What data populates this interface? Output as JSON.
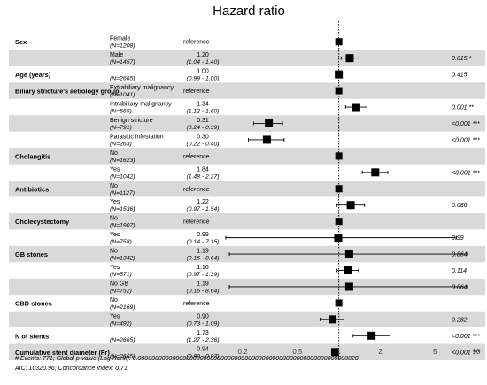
{
  "chart_data": {
    "type": "forest",
    "title": "Hazard ratio",
    "x_scale": "log",
    "xlim": [
      0.14,
      10
    ],
    "reference_line": 1,
    "x_ticks": [
      0.2,
      0.5,
      1,
      2,
      5,
      10
    ],
    "rows": [
      {
        "variable": "Sex",
        "level": "Female",
        "n": "(N=1208)",
        "reference": "reference",
        "hr": 1,
        "shaded": false
      },
      {
        "variable": "",
        "level": "Male",
        "n": "(N=1457)",
        "hr_text": "1.20",
        "ci_text": "(1.04 - 1.40)",
        "hr": 1.2,
        "lo": 1.04,
        "hi": 1.4,
        "p": "0.015 *",
        "shaded": true
      },
      {
        "variable": "Age (years)",
        "level": "",
        "n": "(N=2665)",
        "hr_text": "1.00",
        "ci_text": "(0.99 - 1.00)",
        "hr": 1.0,
        "lo": 0.99,
        "hi": 1.0,
        "p": "0.415",
        "shaded": false
      },
      {
        "variable": "Biliary stricture's aetiology group",
        "level": "Extrabiliary malignancy",
        "n": "(N=1041)",
        "reference": "reference",
        "hr": 1,
        "shaded": true
      },
      {
        "variable": "",
        "level": "Intrabiliary malignancy",
        "n": "(N=565)",
        "hr_text": "1.34",
        "ci_text": "(1.12 - 1.60)",
        "hr": 1.34,
        "lo": 1.12,
        "hi": 1.6,
        "p": "0.001 **",
        "shaded": false
      },
      {
        "variable": "",
        "level": "Benign stricture",
        "n": "(N=791)",
        "hr_text": "0.31",
        "ci_text": "(0.24 - 0.39)",
        "hr": 0.31,
        "lo": 0.24,
        "hi": 0.39,
        "p": "<0.001 ***",
        "shaded": true
      },
      {
        "variable": "",
        "level": "Parasitic infestation",
        "n": "(N=263)",
        "hr_text": "0.30",
        "ci_text": "(0.22 - 0.40)",
        "hr": 0.3,
        "lo": 0.22,
        "hi": 0.4,
        "p": "<0.001 ***",
        "shaded": false
      },
      {
        "variable": "Cholangitis",
        "level": "No",
        "n": "(N=1623)",
        "reference": "reference",
        "hr": 1,
        "shaded": true
      },
      {
        "variable": "",
        "level": "Yes",
        "n": "(N=1042)",
        "hr_text": "1.84",
        "ci_text": "(1.48 - 2.27)",
        "hr": 1.84,
        "lo": 1.48,
        "hi": 2.27,
        "p": "<0.001 ***",
        "shaded": false
      },
      {
        "variable": "Antibiotics",
        "level": "No",
        "n": "(N=1127)",
        "reference": "reference",
        "hr": 1,
        "shaded": true
      },
      {
        "variable": "",
        "level": "Yes",
        "n": "(N=1536)",
        "hr_text": "1.22",
        "ci_text": "(0.97 - 1.54)",
        "hr": 1.22,
        "lo": 0.97,
        "hi": 1.54,
        "p": "0.086",
        "shaded": false
      },
      {
        "variable": "Cholecystectomy",
        "level": "No",
        "n": "(N=1907)",
        "reference": "reference",
        "hr": 1,
        "shaded": true
      },
      {
        "variable": "",
        "level": "Yes",
        "n": "(N=758)",
        "hr_text": "0.99",
        "ci_text": "(0.14 - 7.15)",
        "hr": 0.99,
        "lo": 0.14,
        "hi": 7.15,
        "p": "0.99",
        "shaded": false
      },
      {
        "variable": "GB stones",
        "level": "No",
        "n": "(N=1342)",
        "hr_text": "1.19",
        "ci_text": "(0.16 - 8.64)",
        "hr": 1.19,
        "lo": 0.16,
        "hi": 8.64,
        "p": "0.864",
        "shaded": true
      },
      {
        "variable": "",
        "level": "Yes",
        "n": "(N=571)",
        "hr_text": "1.16",
        "ci_text": "(0.97 - 1.39)",
        "hr": 1.16,
        "lo": 0.97,
        "hi": 1.39,
        "p": "0.114",
        "shaded": false
      },
      {
        "variable": "",
        "level": "No GB",
        "n": "(N=752)",
        "hr_text": "1.19",
        "ci_text": "(0.16 - 8.64)",
        "hr": 1.19,
        "lo": 0.16,
        "hi": 8.64,
        "p": "0.864",
        "shaded": true
      },
      {
        "variable": "CBD stones",
        "level": "No",
        "n": "(N=2169)",
        "reference": "reference",
        "hr": 1,
        "shaded": false
      },
      {
        "variable": "",
        "level": "Yes",
        "n": "(N=492)",
        "hr_text": "0.90",
        "ci_text": "(0.73 - 1.09)",
        "hr": 0.9,
        "lo": 0.73,
        "hi": 1.09,
        "p": "0.282",
        "shaded": true
      },
      {
        "variable": "N of stents",
        "level": "",
        "n": "(N=2665)",
        "hr_text": "1.73",
        "ci_text": "(1.27 - 2.36)",
        "hr": 1.73,
        "lo": 1.27,
        "hi": 2.36,
        "p": "<0.001 ***",
        "shaded": false
      },
      {
        "variable": "Cumulative stent diameter (Fr)",
        "level": "",
        "n": "(N=2665)",
        "hr_text": "0.94",
        "ci_text": "(0.90 - 0.97)",
        "hr": 0.94,
        "lo": 0.9,
        "hi": 0.97,
        "p": "<0.001 ***",
        "shaded": true
      }
    ],
    "footnote_line1": "# Events: 771; Global p-value (Log-Rank): 0.0000000000000000000000000000000000000000000000000000000000000028",
    "footnote_line2": "AIC: 10320.96; Concordance Index: 0.71"
  }
}
